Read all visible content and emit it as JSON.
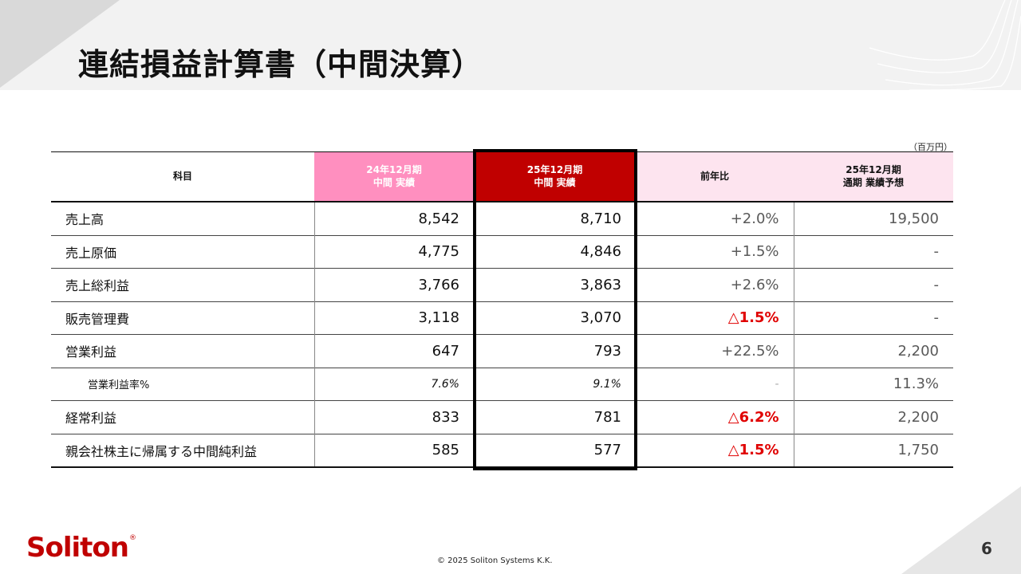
{
  "title": "連結損益計算書（中間決算）",
  "unit": "（百万円）",
  "table": {
    "headers": {
      "item": "科目",
      "prev_line1": "24年12月期",
      "prev_line2": "中間 実績",
      "curr_line1": "25年12月期",
      "curr_line2": "中間 実績",
      "yoy": "前年比",
      "forecast_line1": "25年12月期",
      "forecast_line2": "通期 業績予想"
    },
    "rows": [
      {
        "label": "売上高",
        "prev": "8,542",
        "curr": "8,710",
        "yoy": "+2.0%",
        "forecast": "19,500"
      },
      {
        "label": "売上原価",
        "prev": "4,775",
        "curr": "4,846",
        "yoy": "+1.5%",
        "forecast": "-"
      },
      {
        "label": "売上総利益",
        "prev": "3,766",
        "curr": "3,863",
        "yoy": "+2.6%",
        "forecast": "-"
      },
      {
        "label": "販売管理費",
        "prev": "3,118",
        "curr": "3,070",
        "yoy": "△1.5%",
        "forecast": "-"
      },
      {
        "label": "営業利益",
        "prev": "647",
        "curr": "793",
        "yoy": "+22.5%",
        "forecast": "2,200"
      },
      {
        "label": "営業利益率%",
        "prev": "7.6%",
        "curr": "9.1%",
        "yoy": "-",
        "forecast": "11.3%"
      },
      {
        "label": "経常利益",
        "prev": "833",
        "curr": "781",
        "yoy": "△6.2%",
        "forecast": "2,200"
      },
      {
        "label": "親会社株主に帰属する中間純利益",
        "prev": "585",
        "curr": "577",
        "yoy": "△1.5%",
        "forecast": "1,750"
      }
    ]
  },
  "footer": {
    "logo": "Soliton",
    "logo_mark": "®",
    "copyright": "© 2025 Soliton Systems K.K.",
    "page_number": "6"
  },
  "colors": {
    "prev_header": "#ff8fbf",
    "curr_header": "#c00000",
    "negative": "#e00000",
    "brand": "#c00000"
  }
}
